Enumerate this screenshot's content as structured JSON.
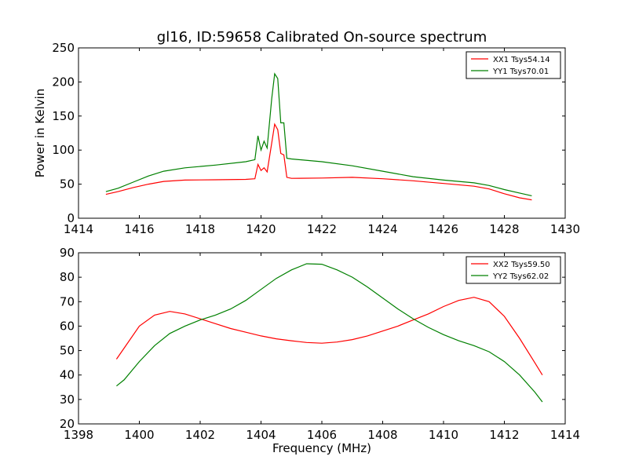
{
  "title": "gl16, ID:59658 Calibrated On-source spectrum",
  "colors": {
    "xx": "#ff0000",
    "yy": "#008000",
    "axes": "#000000",
    "background": "#ffffff"
  },
  "chart_data": [
    {
      "type": "line",
      "xlabel": "",
      "ylabel": "Power in Kelvin",
      "xlim": [
        1414,
        1430
      ],
      "ylim": [
        0,
        250
      ],
      "xticks": [
        1414,
        1416,
        1418,
        1420,
        1422,
        1424,
        1426,
        1428,
        1430
      ],
      "yticks": [
        0,
        50,
        100,
        150,
        200,
        250
      ],
      "legend": "top-right",
      "grid": false,
      "series": [
        {
          "name": "XX1 Tsys54.14",
          "color": "#ff0000",
          "points": [
            [
              1414.9,
              35
            ],
            [
              1415.3,
              39
            ],
            [
              1415.8,
              45
            ],
            [
              1416.3,
              50
            ],
            [
              1416.8,
              54
            ],
            [
              1417.5,
              56
            ],
            [
              1418.5,
              56.5
            ],
            [
              1419.5,
              57
            ],
            [
              1419.8,
              58
            ],
            [
              1419.9,
              79
            ],
            [
              1420.0,
              70
            ],
            [
              1420.1,
              74
            ],
            [
              1420.2,
              68
            ],
            [
              1420.35,
              110
            ],
            [
              1420.45,
              138
            ],
            [
              1420.55,
              130
            ],
            [
              1420.65,
              95
            ],
            [
              1420.75,
              93
            ],
            [
              1420.85,
              60
            ],
            [
              1421.0,
              58.5
            ],
            [
              1422.0,
              59
            ],
            [
              1423.0,
              60
            ],
            [
              1424.0,
              58
            ],
            [
              1425.0,
              55
            ],
            [
              1426.0,
              51
            ],
            [
              1427.0,
              47
            ],
            [
              1427.5,
              43
            ],
            [
              1428.0,
              36
            ],
            [
              1428.5,
              30
            ],
            [
              1428.9,
              27
            ]
          ]
        },
        {
          "name": "YY1 Tsys70.01",
          "color": "#008000",
          "points": [
            [
              1414.9,
              39
            ],
            [
              1415.3,
              44
            ],
            [
              1415.8,
              53
            ],
            [
              1416.3,
              62
            ],
            [
              1416.8,
              69
            ],
            [
              1417.5,
              74
            ],
            [
              1418.5,
              78
            ],
            [
              1419.5,
              83
            ],
            [
              1419.8,
              86
            ],
            [
              1419.9,
              121
            ],
            [
              1420.0,
              100
            ],
            [
              1420.1,
              113
            ],
            [
              1420.2,
              103
            ],
            [
              1420.35,
              175
            ],
            [
              1420.45,
              212
            ],
            [
              1420.55,
              205
            ],
            [
              1420.65,
              140
            ],
            [
              1420.75,
              140
            ],
            [
              1420.85,
              88
            ],
            [
              1421.0,
              87
            ],
            [
              1422.0,
              83
            ],
            [
              1423.0,
              77
            ],
            [
              1424.0,
              69
            ],
            [
              1425.0,
              61
            ],
            [
              1426.0,
              56
            ],
            [
              1427.0,
              52
            ],
            [
              1427.5,
              48
            ],
            [
              1428.0,
              42
            ],
            [
              1428.5,
              37
            ],
            [
              1428.9,
              33
            ]
          ]
        }
      ]
    },
    {
      "type": "line",
      "xlabel": "Frequency (MHz)",
      "ylabel": "",
      "xlim": [
        1398,
        1414
      ],
      "ylim": [
        20,
        90
      ],
      "xticks": [
        1398,
        1400,
        1402,
        1404,
        1406,
        1408,
        1410,
        1412,
        1414
      ],
      "yticks": [
        20,
        30,
        40,
        50,
        60,
        70,
        80,
        90
      ],
      "legend": "top-right",
      "grid": false,
      "series": [
        {
          "name": "XX2 Tsys59.50",
          "color": "#ff0000",
          "points": [
            [
              1399.25,
              46.5
            ],
            [
              1399.5,
              51
            ],
            [
              1400.0,
              60
            ],
            [
              1400.5,
              64.5
            ],
            [
              1401.0,
              66
            ],
            [
              1401.5,
              65
            ],
            [
              1402.0,
              63
            ],
            [
              1402.5,
              61
            ],
            [
              1403.0,
              59
            ],
            [
              1403.5,
              57.5
            ],
            [
              1404.0,
              56
            ],
            [
              1404.5,
              54.8
            ],
            [
              1405.0,
              54
            ],
            [
              1405.5,
              53.3
            ],
            [
              1406.0,
              53
            ],
            [
              1406.5,
              53.5
            ],
            [
              1407.0,
              54.5
            ],
            [
              1407.5,
              56
            ],
            [
              1408.0,
              58
            ],
            [
              1408.5,
              60
            ],
            [
              1409.0,
              62.5
            ],
            [
              1409.5,
              65
            ],
            [
              1410.0,
              68
            ],
            [
              1410.5,
              70.5
            ],
            [
              1411.0,
              71.8
            ],
            [
              1411.5,
              70
            ],
            [
              1412.0,
              64
            ],
            [
              1412.5,
              55
            ],
            [
              1413.0,
              45
            ],
            [
              1413.25,
              40
            ]
          ]
        },
        {
          "name": "YY2 Tsys62.02",
          "color": "#008000",
          "points": [
            [
              1399.25,
              35.5
            ],
            [
              1399.5,
              38
            ],
            [
              1400.0,
              45.5
            ],
            [
              1400.5,
              52
            ],
            [
              1401.0,
              57
            ],
            [
              1401.5,
              60
            ],
            [
              1402.0,
              62.5
            ],
            [
              1402.5,
              64.5
            ],
            [
              1403.0,
              67
            ],
            [
              1403.5,
              70.5
            ],
            [
              1404.0,
              75
            ],
            [
              1404.5,
              79.5
            ],
            [
              1405.0,
              83
            ],
            [
              1405.5,
              85.5
            ],
            [
              1406.0,
              85.3
            ],
            [
              1406.5,
              83
            ],
            [
              1407.0,
              80
            ],
            [
              1407.5,
              76
            ],
            [
              1408.0,
              71.5
            ],
            [
              1408.5,
              67
            ],
            [
              1409.0,
              63
            ],
            [
              1409.5,
              59.5
            ],
            [
              1410.0,
              56.5
            ],
            [
              1410.5,
              54
            ],
            [
              1411.0,
              52
            ],
            [
              1411.5,
              49.5
            ],
            [
              1412.0,
              45.5
            ],
            [
              1412.5,
              40
            ],
            [
              1413.0,
              33
            ],
            [
              1413.25,
              29
            ]
          ]
        }
      ]
    }
  ]
}
